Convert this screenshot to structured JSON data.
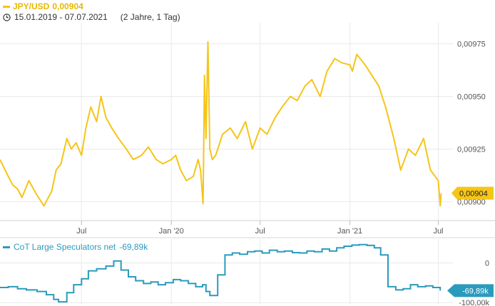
{
  "header": {
    "instrument": "JPY/USD",
    "last_value": "0,00904",
    "date_range": "15.01.2019 - 07.07.2021",
    "period_info": "(2 Jahre, 1 Tag)"
  },
  "colors": {
    "main_series": "#f5c518",
    "main_label_bg": "#f5c518",
    "cot_series": "#2a9bbd",
    "cot_label_bg": "#2a9bbd",
    "grid": "#e9e9e9",
    "axis_text": "#555555"
  },
  "icons": {
    "clock": "clock-icon"
  },
  "chart_data": [
    {
      "type": "line",
      "series": [
        {
          "name": "JPY/USD",
          "x": [
            "2019-01-15",
            "2019-02-01",
            "2019-02-10",
            "2019-02-20",
            "2019-03-01",
            "2019-03-15",
            "2019-04-01",
            "2019-04-15",
            "2019-05-01",
            "2019-05-10",
            "2019-05-20",
            "2019-06-01",
            "2019-06-10",
            "2019-06-20",
            "2019-07-01",
            "2019-07-10",
            "2019-07-20",
            "2019-08-01",
            "2019-08-10",
            "2019-08-20",
            "2019-09-01",
            "2019-09-15",
            "2019-10-01",
            "2019-10-15",
            "2019-11-01",
            "2019-11-15",
            "2019-12-01",
            "2019-12-15",
            "2020-01-01",
            "2020-01-10",
            "2020-01-20",
            "2020-02-01",
            "2020-02-15",
            "2020-02-25",
            "2020-03-01",
            "2020-03-06",
            "2020-03-09",
            "2020-03-12",
            "2020-03-16",
            "2020-03-20",
            "2020-03-25",
            "2020-04-01",
            "2020-04-15",
            "2020-05-01",
            "2020-05-15",
            "2020-06-01",
            "2020-06-15",
            "2020-07-01",
            "2020-07-15",
            "2020-08-01",
            "2020-08-15",
            "2020-09-01",
            "2020-09-15",
            "2020-10-01",
            "2020-10-15",
            "2020-11-01",
            "2020-11-15",
            "2020-12-01",
            "2020-12-15",
            "2021-01-01",
            "2021-01-06",
            "2021-01-15",
            "2021-02-01",
            "2021-02-15",
            "2021-03-01",
            "2021-03-15",
            "2021-04-01",
            "2021-04-15",
            "2021-05-01",
            "2021-05-15",
            "2021-06-01",
            "2021-06-15",
            "2021-07-01",
            "2021-07-05",
            "2021-07-07"
          ],
          "values": [
            0.0092,
            0.00912,
            0.00908,
            0.00906,
            0.00902,
            0.0091,
            0.00903,
            0.00898,
            0.00905,
            0.00915,
            0.00918,
            0.0093,
            0.00925,
            0.00928,
            0.00922,
            0.00935,
            0.00945,
            0.00938,
            0.0095,
            0.0094,
            0.00935,
            0.0093,
            0.00925,
            0.0092,
            0.00922,
            0.00926,
            0.0092,
            0.00918,
            0.0092,
            0.00922,
            0.00915,
            0.0091,
            0.00912,
            0.0092,
            0.00915,
            0.00899,
            0.0096,
            0.0093,
            0.00976,
            0.00925,
            0.0092,
            0.00922,
            0.00932,
            0.00935,
            0.0093,
            0.00938,
            0.00925,
            0.00935,
            0.00932,
            0.0094,
            0.00945,
            0.0095,
            0.00948,
            0.00955,
            0.00958,
            0.0095,
            0.00962,
            0.00968,
            0.00966,
            0.00965,
            0.00962,
            0.0097,
            0.00965,
            0.0096,
            0.00955,
            0.00945,
            0.0093,
            0.00915,
            0.00925,
            0.00922,
            0.0093,
            0.00915,
            0.0091,
            0.00898,
            0.00904
          ]
        }
      ],
      "y_ticks": [
        "0,00975",
        "0,00950",
        "0,00925",
        "0,00900"
      ],
      "ylim": [
        0.00891,
        0.00985
      ],
      "x_ticks": [
        "Jul",
        "Jan '20",
        "Jul",
        "Jan '21",
        "Jul"
      ],
      "xlim": [
        "2019-01-15",
        "2021-07-31"
      ],
      "grid": true,
      "last_label": "0,00904"
    },
    {
      "type": "line",
      "legend": "CoT Large Speculators net",
      "series": [
        {
          "name": "CoT Large Speculators net",
          "x": [
            "2019-01-15",
            "2019-02-01",
            "2019-02-20",
            "2019-03-10",
            "2019-04-01",
            "2019-04-20",
            "2019-05-05",
            "2019-05-15",
            "2019-06-01",
            "2019-06-15",
            "2019-07-01",
            "2019-07-15",
            "2019-08-01",
            "2019-08-20",
            "2019-09-05",
            "2019-09-20",
            "2019-10-05",
            "2019-10-20",
            "2019-11-05",
            "2019-11-20",
            "2019-12-05",
            "2019-12-20",
            "2020-01-05",
            "2020-01-20",
            "2020-02-05",
            "2020-02-20",
            "2020-03-05",
            "2020-03-12",
            "2020-03-20",
            "2020-04-05",
            "2020-04-20",
            "2020-05-05",
            "2020-05-20",
            "2020-06-05",
            "2020-06-20",
            "2020-07-05",
            "2020-07-20",
            "2020-08-05",
            "2020-08-20",
            "2020-09-05",
            "2020-09-20",
            "2020-10-05",
            "2020-10-20",
            "2020-11-05",
            "2020-11-20",
            "2020-12-05",
            "2020-12-20",
            "2021-01-05",
            "2021-01-20",
            "2021-02-05",
            "2021-02-20",
            "2021-03-05",
            "2021-03-20",
            "2021-04-05",
            "2021-04-20",
            "2021-05-05",
            "2021-05-20",
            "2021-06-05",
            "2021-06-20",
            "2021-07-05"
          ],
          "values": [
            -62000,
            -60000,
            -65000,
            -68000,
            -72000,
            -80000,
            -92000,
            -98000,
            -75000,
            -55000,
            -40000,
            -20000,
            -15000,
            -8000,
            5000,
            -18000,
            -35000,
            -45000,
            -52000,
            -48000,
            -55000,
            -50000,
            -42000,
            -45000,
            -52000,
            -60000,
            -55000,
            -72000,
            -82000,
            -30000,
            20000,
            25000,
            22000,
            28000,
            30000,
            25000,
            32000,
            28000,
            30000,
            26000,
            25000,
            30000,
            28000,
            35000,
            30000,
            38000,
            42000,
            45000,
            46000,
            44000,
            38000,
            20000,
            -60000,
            -68000,
            -65000,
            -55000,
            -60000,
            -58000,
            -62000,
            -69890
          ]
        }
      ],
      "y_ticks": [
        "0",
        "-100,00k"
      ],
      "ylim": [
        -105000,
        60000
      ],
      "grid": true,
      "last_label": "-69,89k"
    }
  ]
}
